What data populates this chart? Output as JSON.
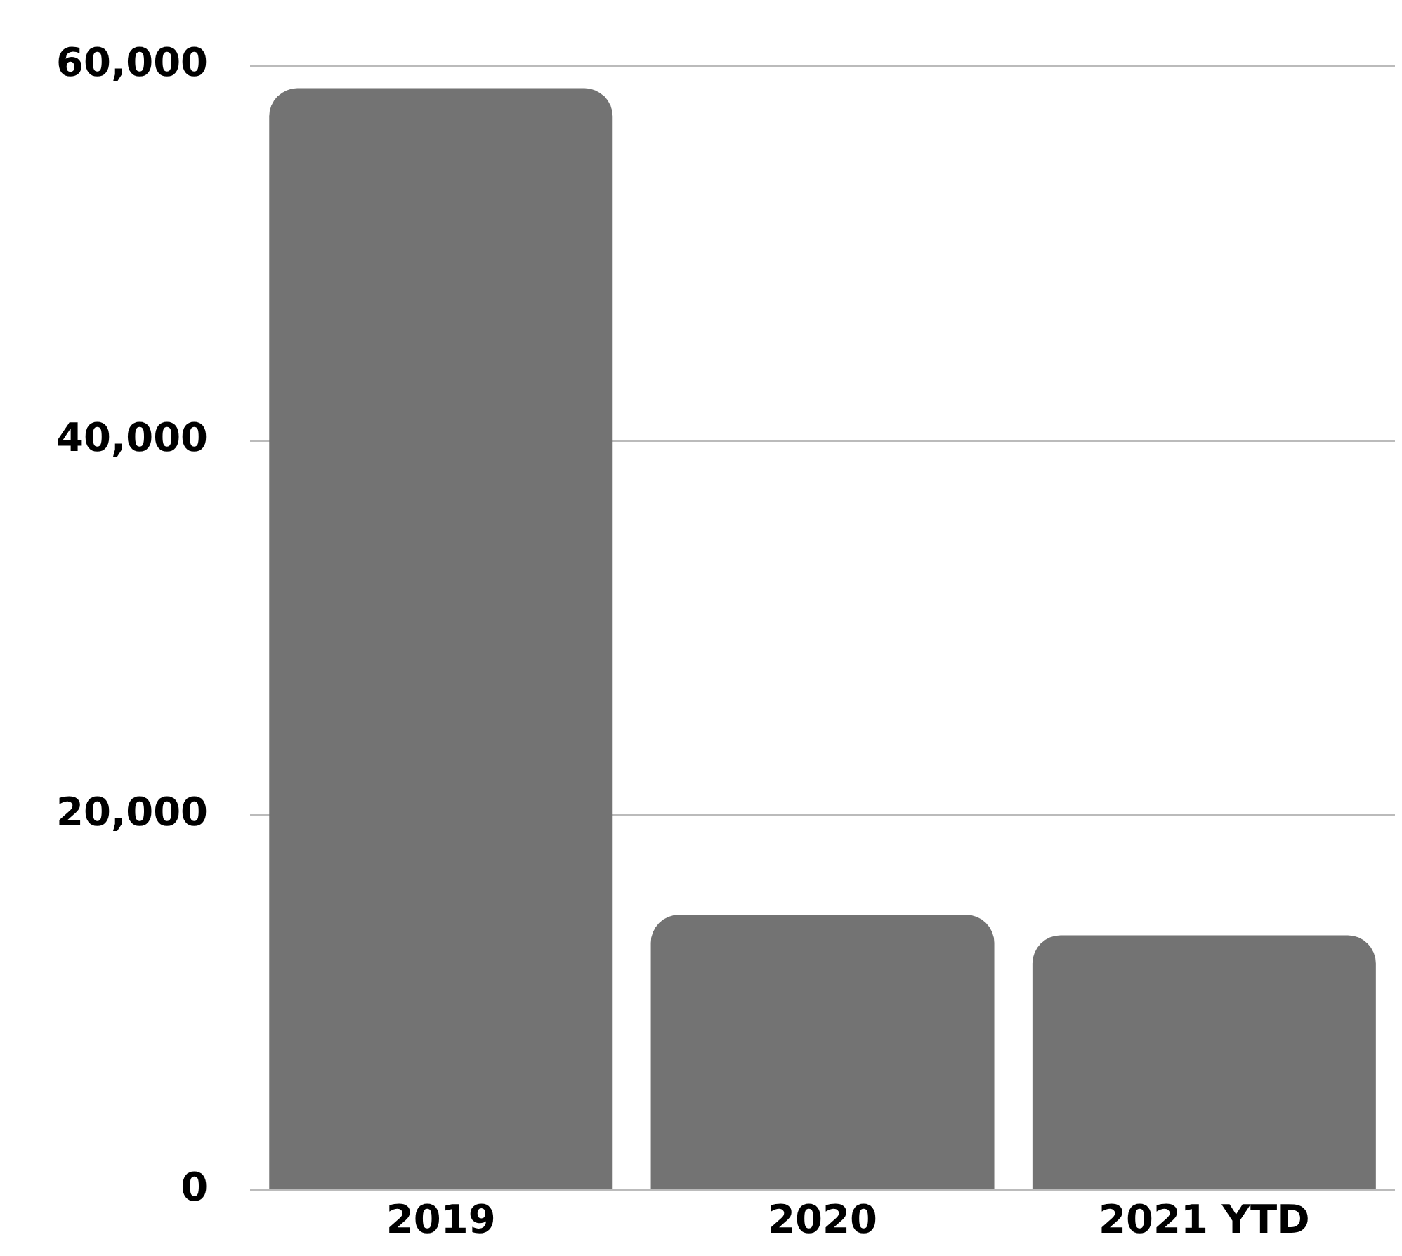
{
  "chart_data": {
    "type": "bar",
    "categories": [
      "2019",
      "2020",
      "2021 YTD"
    ],
    "values": [
      58800,
      14700,
      13600
    ],
    "color": "#737373",
    "ylim": [
      0,
      60000
    ],
    "yticks": [
      0,
      {
        "value": 20000,
        "label": "20,000"
      },
      {
        "value": 40000,
        "label": "40,000"
      },
      {
        "value": 60000,
        "label": "60,000"
      }
    ],
    "grid": "y",
    "legend": false
  }
}
